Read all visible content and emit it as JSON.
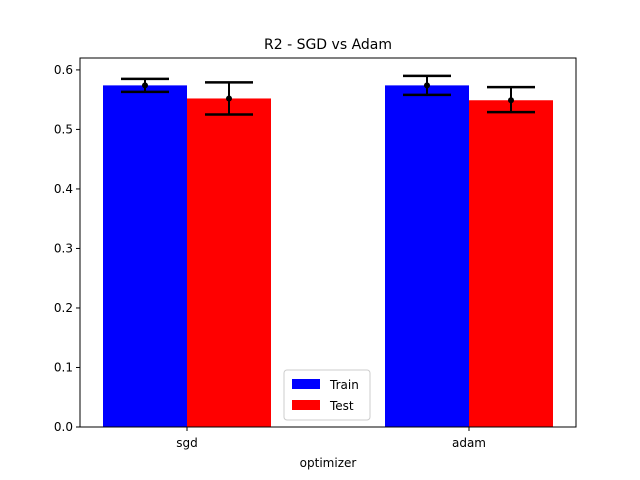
{
  "chart_data": {
    "type": "bar",
    "title": "R2 - SGD vs Adam",
    "xlabel": "optimizer",
    "ylabel": "",
    "categories": [
      "sgd",
      "adam"
    ],
    "ylim": [
      0,
      0.62
    ],
    "yticks": [
      0.0,
      0.1,
      0.2,
      0.3,
      0.4,
      0.5,
      0.6
    ],
    "ytick_labels": [
      "0.0",
      "0.1",
      "0.2",
      "0.3",
      "0.4",
      "0.5",
      "0.6"
    ],
    "grid": false,
    "legend_position": "bottom-center",
    "series": [
      {
        "name": "Train",
        "color": "#0000ff",
        "values": [
          0.574,
          0.574
        ],
        "error_low": [
          0.563,
          0.558
        ],
        "error_high": [
          0.585,
          0.59
        ]
      },
      {
        "name": "Test",
        "color": "#ff0000",
        "values": [
          0.552,
          0.549
        ],
        "error_low": [
          0.525,
          0.529
        ],
        "error_high": [
          0.579,
          0.571
        ]
      }
    ]
  }
}
